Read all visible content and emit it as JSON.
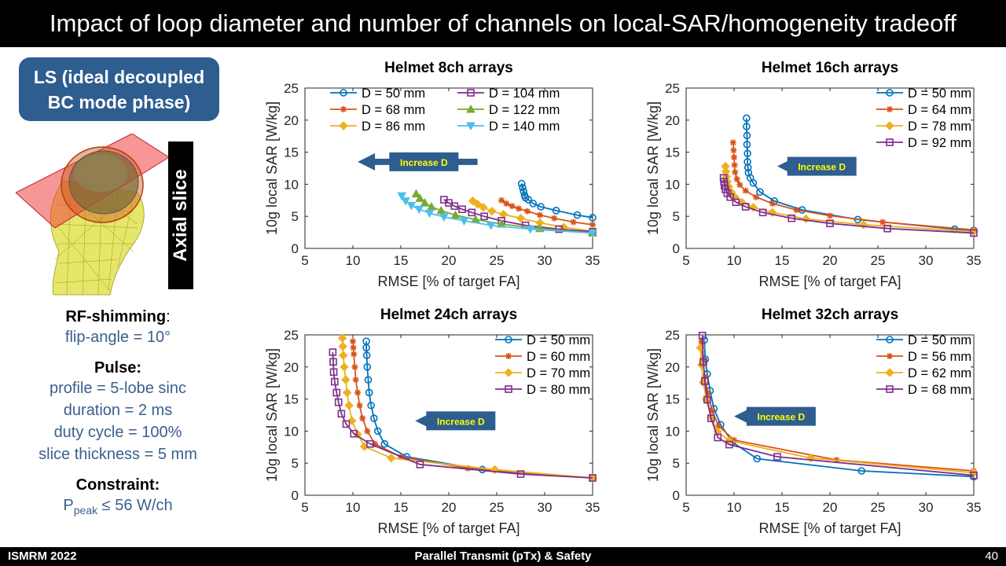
{
  "slide": {
    "title": "Impact of loop diameter and number of channels on local-SAR/homogeneity tradeoff",
    "footer_left": "ISMRM 2022",
    "footer_center": "Parallel Transmit (pTx) & Safety",
    "footer_page": "40"
  },
  "left_panel": {
    "ls_line1": "LS (ideal decoupled",
    "ls_line2": "BC mode phase)",
    "slice_label": "Axial slice",
    "rf_header": "RF-shimming",
    "rf_colon": ":",
    "rf_value": "flip-angle = 10°",
    "pulse_header": "Pulse:",
    "pulse_lines": [
      "profile = 5-lobe sinc",
      "duration = 2 ms",
      "duty cycle = 100%",
      "slice thickness = 5 mm"
    ],
    "constraint_header": "Constraint:",
    "constraint_p": "P",
    "constraint_sub": "peak",
    "constraint_rest": " ≤ 56 W/ch"
  },
  "series_colors": [
    "#0072BD",
    "#D95319",
    "#EDB120",
    "#7E2F8E",
    "#77AC30",
    "#4DBEEE"
  ],
  "arrow_color": "#2e5d8f",
  "arrow_label_color": "#ffff00",
  "chart_data": [
    {
      "type": "line",
      "title": "Helmet 8ch arrays",
      "xlabel": "RMSE [% of target FA]",
      "ylabel": "10g local SAR [W/kg]",
      "xlim": [
        5,
        35
      ],
      "ylim": [
        0,
        25
      ],
      "xticks": [
        5,
        10,
        15,
        20,
        25,
        30,
        35
      ],
      "yticks": [
        0,
        5,
        10,
        15,
        20,
        25
      ],
      "annotation": "Increase D",
      "legend": "top",
      "series": [
        {
          "name": "D = 50 mm",
          "marker": "circle",
          "x": [
            27.6,
            27.7,
            27.8,
            27.9,
            28.0,
            28.3,
            28.8,
            29.6,
            31.2,
            33.4,
            35.0
          ],
          "y": [
            10.1,
            9.5,
            8.9,
            8.3,
            7.9,
            7.6,
            7.0,
            6.5,
            5.9,
            5.2,
            4.8
          ]
        },
        {
          "name": "D = 68 mm",
          "marker": "asterisk",
          "x": [
            25.5,
            26.0,
            26.6,
            27.3,
            28.2,
            29.5,
            31.0,
            33.0,
            35.0
          ],
          "y": [
            7.5,
            7.0,
            6.6,
            6.2,
            5.8,
            5.2,
            4.7,
            4.1,
            3.7
          ]
        },
        {
          "name": "D = 86 mm",
          "marker": "diamond",
          "x": [
            22.5,
            23.0,
            23.6,
            24.5,
            25.7,
            27.5,
            29.5,
            32.0,
            35.0
          ],
          "y": [
            7.4,
            6.9,
            6.4,
            5.8,
            5.3,
            4.7,
            4.0,
            3.3,
            2.7
          ]
        },
        {
          "name": "D = 104 mm",
          "marker": "square",
          "x": [
            19.5,
            20.0,
            20.6,
            21.4,
            22.4,
            23.7,
            25.5,
            28.0,
            31.5,
            35.0
          ],
          "y": [
            7.6,
            7.1,
            6.6,
            6.1,
            5.6,
            5.0,
            4.3,
            3.6,
            3.0,
            2.6
          ]
        },
        {
          "name": "D = 122 mm",
          "marker": "triangle-up",
          "x": [
            16.6,
            17.0,
            17.5,
            18.2,
            19.2,
            20.7,
            22.8,
            25.5,
            29.5,
            35.0
          ],
          "y": [
            8.5,
            7.8,
            7.1,
            6.5,
            5.9,
            5.2,
            4.5,
            3.8,
            3.1,
            2.4
          ]
        },
        {
          "name": "D = 140 mm",
          "marker": "triangle-down",
          "x": [
            15.1,
            15.5,
            16.1,
            16.9,
            18.0,
            19.5,
            21.6,
            24.4,
            28.5,
            35.0
          ],
          "y": [
            8.2,
            7.4,
            6.7,
            6.1,
            5.5,
            4.9,
            4.3,
            3.6,
            3.0,
            2.4
          ]
        }
      ]
    },
    {
      "type": "line",
      "title": "Helmet 16ch arrays",
      "xlabel": "RMSE [% of target FA]",
      "ylabel": "10g local SAR [W/kg]",
      "xlim": [
        5,
        35
      ],
      "ylim": [
        0,
        25
      ],
      "xticks": [
        5,
        10,
        15,
        20,
        25,
        30,
        35
      ],
      "yticks": [
        0,
        5,
        10,
        15,
        20,
        25
      ],
      "annotation": "Increase D",
      "legend": "top-right",
      "series": [
        {
          "name": "D = 50 mm",
          "marker": "circle",
          "x": [
            11.3,
            11.3,
            11.35,
            11.35,
            11.4,
            11.4,
            11.45,
            11.5,
            11.7,
            12.0,
            12.7,
            14.2,
            17.1,
            22.9,
            33.0,
            35.0
          ],
          "y": [
            20.3,
            19.0,
            17.6,
            16.2,
            14.8,
            13.5,
            12.6,
            11.8,
            11.0,
            10.2,
            8.8,
            7.4,
            6.0,
            4.5,
            3.0,
            2.8
          ]
        },
        {
          "name": "D = 64 mm",
          "marker": "asterisk",
          "x": [
            9.9,
            9.95,
            10.0,
            10.05,
            10.1,
            10.3,
            10.6,
            11.2,
            12.3,
            14.0,
            16.5,
            20.0,
            25.5,
            35.0
          ],
          "y": [
            16.5,
            15.3,
            14.2,
            13.0,
            11.9,
            10.8,
            9.9,
            9.0,
            8.0,
            7.0,
            6.0,
            5.1,
            4.1,
            2.9
          ]
        },
        {
          "name": "D = 78 mm",
          "marker": "diamond",
          "x": [
            9.1,
            9.15,
            9.2,
            9.3,
            9.45,
            9.7,
            10.1,
            10.8,
            12.0,
            14.0,
            17.5,
            23.5,
            35.0
          ],
          "y": [
            12.8,
            12.0,
            11.2,
            10.4,
            9.6,
            8.8,
            8.0,
            7.2,
            6.4,
            5.6,
            4.6,
            3.7,
            2.6
          ]
        },
        {
          "name": "D = 92 mm",
          "marker": "square",
          "x": [
            8.9,
            8.95,
            9.0,
            9.1,
            9.3,
            9.6,
            10.2,
            11.2,
            13.0,
            16.0,
            20.0,
            26.0,
            35.0
          ],
          "y": [
            11.0,
            10.4,
            9.8,
            9.2,
            8.6,
            8.0,
            7.2,
            6.5,
            5.6,
            4.7,
            3.9,
            3.1,
            2.4
          ]
        }
      ]
    },
    {
      "type": "line",
      "title": "Helmet 24ch arrays",
      "xlabel": "RMSE [% of target FA]",
      "ylabel": "10g local SAR [W/kg]",
      "xlim": [
        5,
        35
      ],
      "ylim": [
        0,
        25
      ],
      "xticks": [
        5,
        10,
        15,
        20,
        25,
        30,
        35
      ],
      "yticks": [
        0,
        5,
        10,
        15,
        20,
        25
      ],
      "annotation": "Increase D",
      "legend": "top-right",
      "series": [
        {
          "name": "D = 50 mm",
          "marker": "circle",
          "x": [
            11.4,
            11.4,
            11.45,
            11.5,
            11.6,
            11.7,
            11.9,
            12.2,
            12.6,
            13.3,
            15.6,
            23.5,
            35.0
          ],
          "y": [
            24.0,
            23.0,
            21.8,
            20.0,
            18.0,
            16.0,
            14.0,
            12.0,
            10.0,
            8.0,
            6.0,
            4.0,
            2.7
          ]
        },
        {
          "name": "D = 60 mm",
          "marker": "asterisk",
          "x": [
            10.0,
            10.05,
            10.1,
            10.2,
            10.3,
            10.5,
            10.7,
            11.0,
            11.5,
            12.3,
            15.0,
            22.0,
            35.0
          ],
          "y": [
            24.0,
            23.0,
            22.0,
            20.0,
            18.0,
            16.0,
            14.0,
            12.0,
            10.0,
            8.0,
            6.0,
            4.2,
            2.7
          ]
        },
        {
          "name": "D = 70 mm",
          "marker": "diamond",
          "x": [
            8.9,
            8.95,
            9.0,
            9.1,
            9.25,
            9.4,
            9.6,
            9.9,
            10.5,
            11.2,
            14.0,
            24.8,
            35.0
          ],
          "y": [
            24.5,
            23.2,
            21.8,
            20.0,
            18.0,
            16.0,
            14.0,
            11.6,
            9.5,
            7.6,
            5.8,
            4.0,
            2.7
          ]
        },
        {
          "name": "D = 80 mm",
          "marker": "square",
          "x": [
            7.9,
            7.95,
            8.0,
            8.1,
            8.3,
            8.5,
            8.8,
            9.3,
            10.1,
            11.8,
            17.0,
            27.5,
            35.0
          ],
          "y": [
            22.3,
            20.8,
            19.2,
            17.7,
            16.0,
            14.5,
            12.7,
            11.1,
            9.6,
            8.0,
            4.8,
            3.3,
            2.7
          ]
        }
      ]
    },
    {
      "type": "line",
      "title": "Helmet 32ch arrays",
      "xlabel": "RMSE [% of target FA]",
      "ylabel": "10g local SAR [W/kg]",
      "xlim": [
        5,
        35
      ],
      "ylim": [
        0,
        25
      ],
      "xticks": [
        5,
        10,
        15,
        20,
        25,
        30,
        35
      ],
      "yticks": [
        0,
        5,
        10,
        15,
        20,
        25
      ],
      "annotation": "Increase D",
      "legend": "top-right",
      "series": [
        {
          "name": "D = 50 mm",
          "marker": "circle",
          "x": [
            6.9,
            7.0,
            7.2,
            7.5,
            7.9,
            8.6,
            9.8,
            12.4,
            23.3,
            35.0
          ],
          "y": [
            24.2,
            21.2,
            18.9,
            16.3,
            13.5,
            11.0,
            8.3,
            5.7,
            3.8,
            2.9
          ]
        },
        {
          "name": "D = 56 mm",
          "marker": "asterisk",
          "x": [
            6.6,
            6.75,
            6.95,
            7.25,
            7.7,
            8.4,
            10.0,
            20.7,
            35.0
          ],
          "y": [
            23.9,
            21.0,
            18.5,
            16.0,
            13.2,
            10.8,
            8.6,
            5.5,
            3.8
          ]
        },
        {
          "name": "D = 62 mm",
          "marker": "diamond",
          "x": [
            6.5,
            6.6,
            6.8,
            7.1,
            7.6,
            8.3,
            9.5,
            18.0,
            35.0
          ],
          "y": [
            23.0,
            20.3,
            17.6,
            14.9,
            12.2,
            9.9,
            8.5,
            5.8,
            3.5
          ]
        },
        {
          "name": "D = 68 mm",
          "marker": "square",
          "x": [
            6.7,
            6.8,
            6.95,
            7.2,
            7.6,
            8.3,
            9.5,
            14.5,
            35.0
          ],
          "y": [
            24.9,
            20.8,
            17.8,
            14.9,
            12.0,
            9.0,
            7.9,
            6.0,
            3.1
          ]
        }
      ]
    }
  ]
}
